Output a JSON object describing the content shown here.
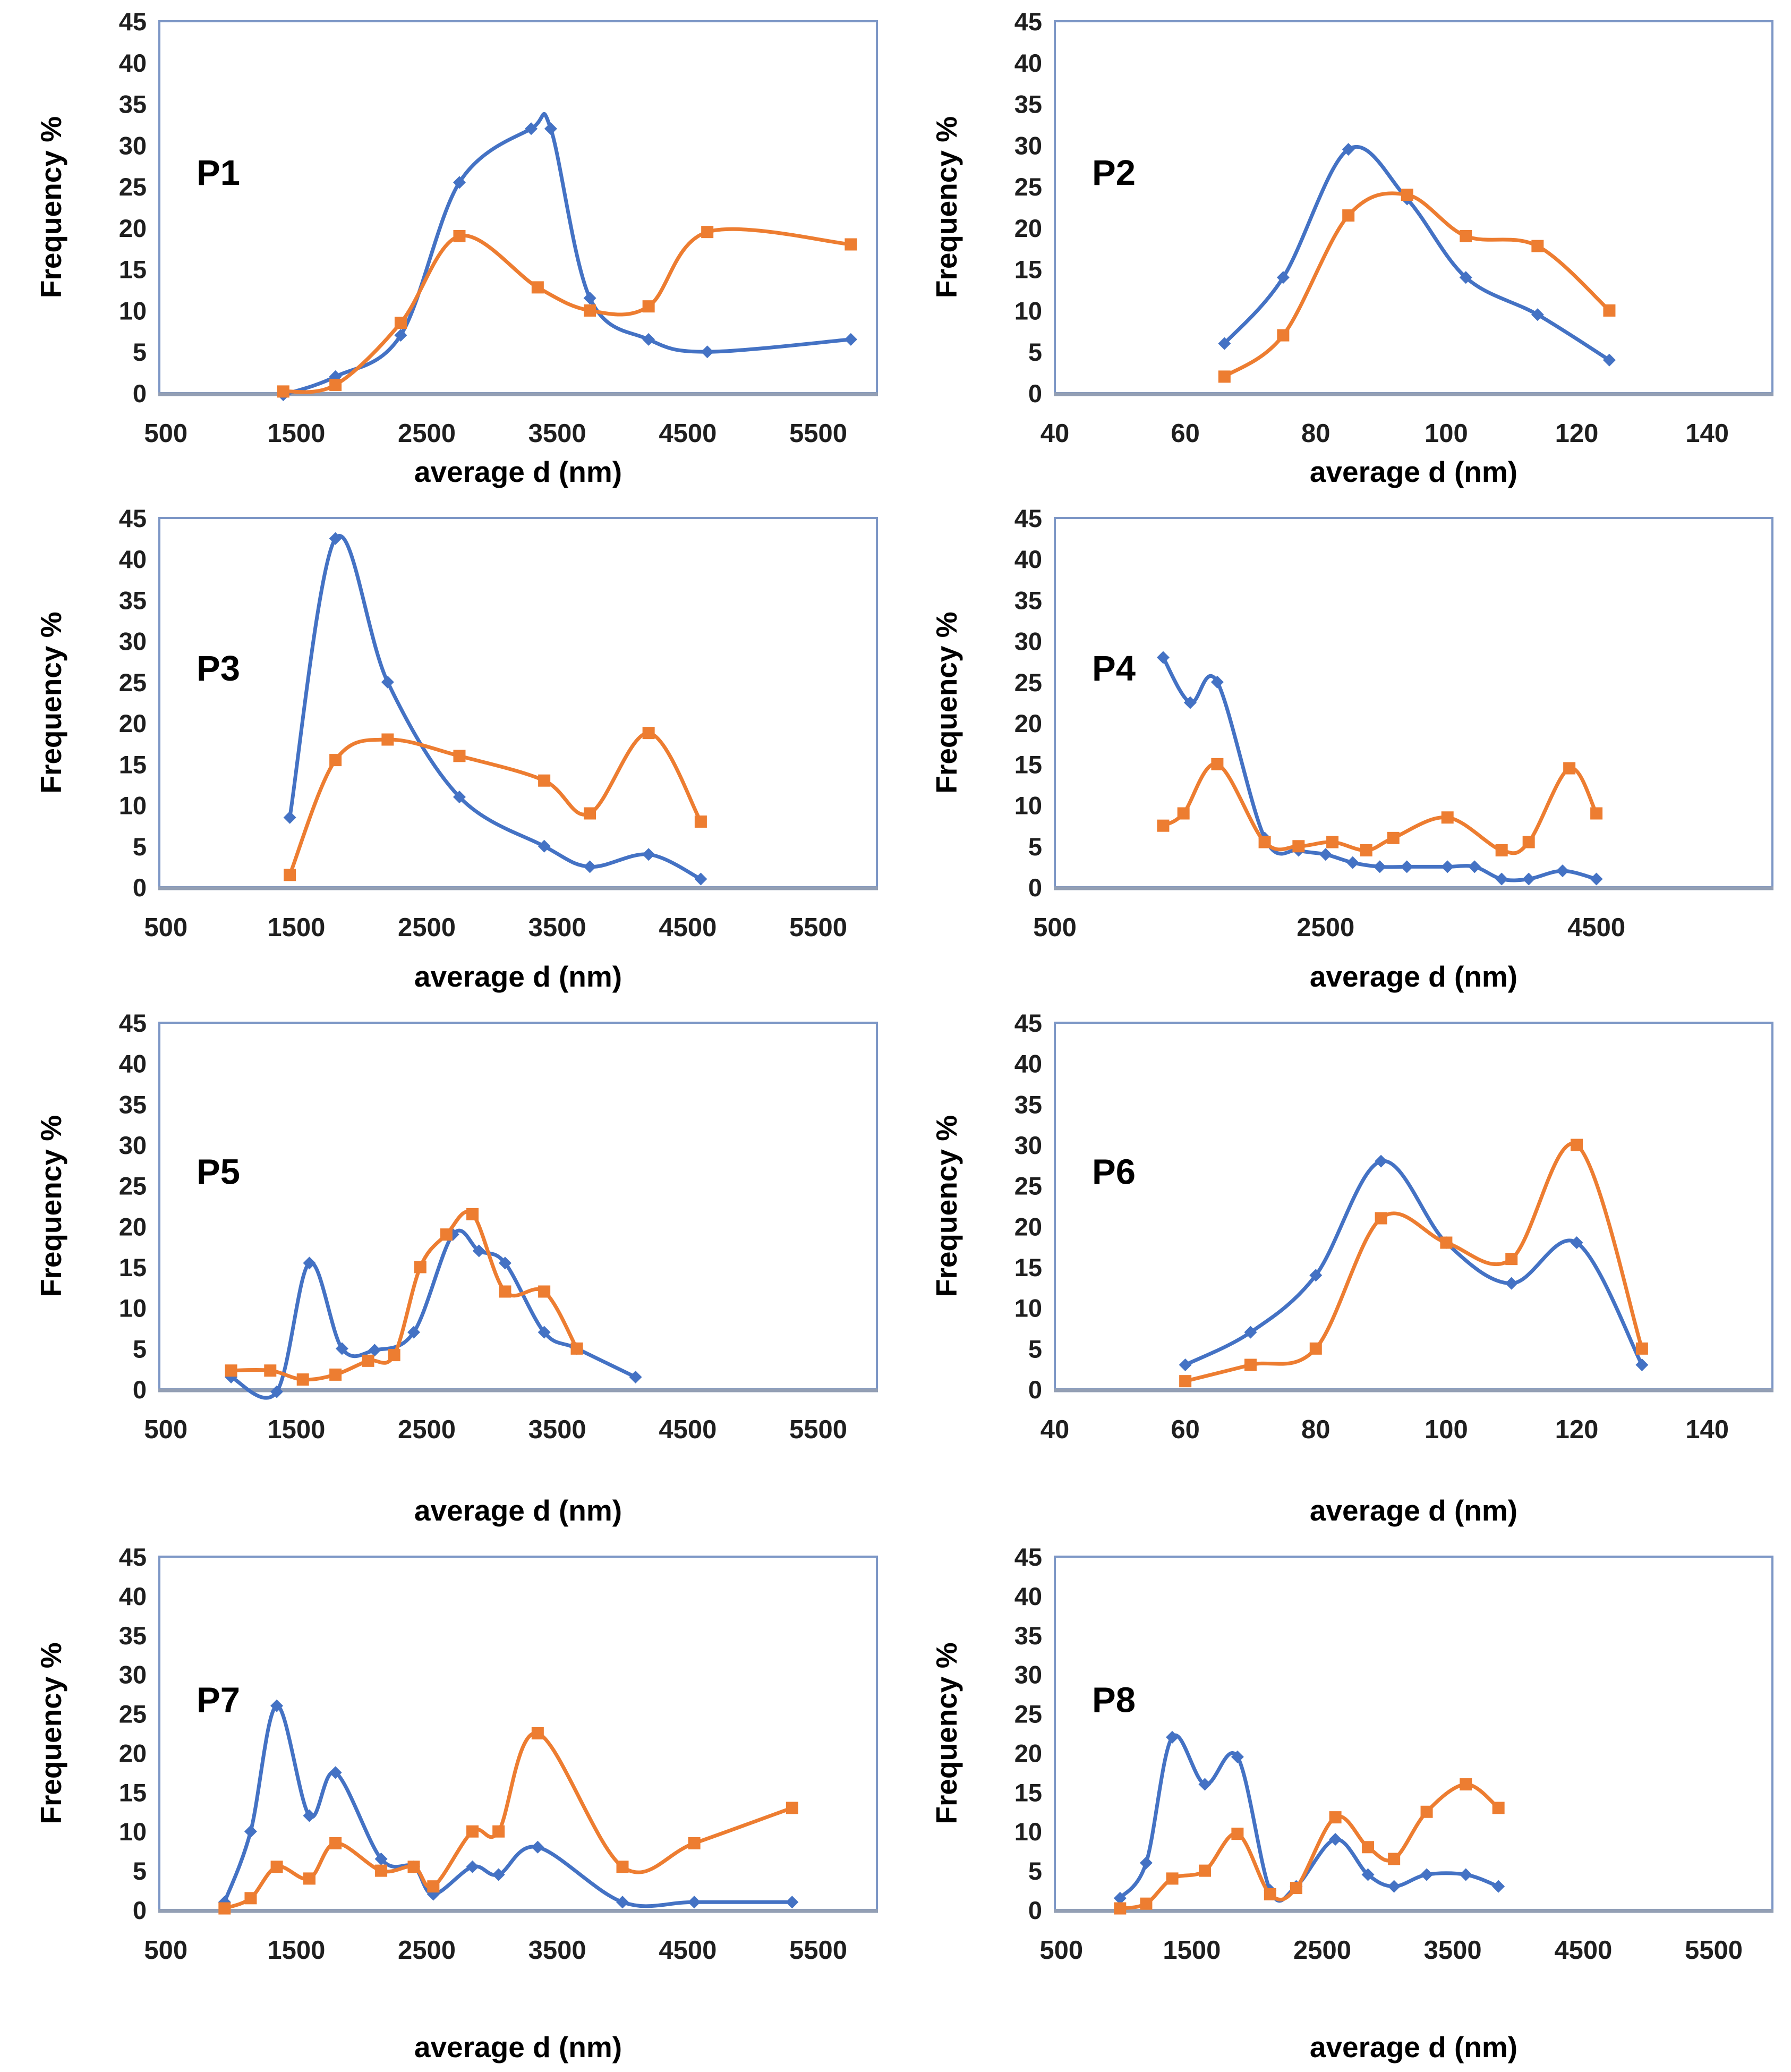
{
  "figure": {
    "description": "Particle size distribution figure: 8 scatter-smooth charts P1 to P8, two series each (blue diamonds, orange squares)",
    "ylabel": "Frequency %",
    "xlabel": "average d (nm)"
  },
  "colors": {
    "series_blue": "#4472C4",
    "series_orange": "#ED7D31",
    "frame": "#7D97C6",
    "baseline": "#939FB4",
    "tick_text": "#1f1f1f",
    "label_text": "#000000",
    "background": "#ffffff"
  },
  "chart_data": [
    {
      "type": "line",
      "title": "P1",
      "xlabel": "average d (nm)",
      "ylabel": "Frequency %",
      "xlim": [
        450,
        5950
      ],
      "ylim": [
        0,
        45
      ],
      "xticks": [
        500,
        1500,
        2500,
        3500,
        4500,
        5500
      ],
      "yticks": [
        0,
        5,
        10,
        15,
        20,
        25,
        30,
        35,
        40,
        45
      ],
      "grid": false,
      "legend": "none",
      "series": [
        {
          "name": "blue-diamond",
          "color": "#4472C4",
          "marker": "diamond",
          "x": [
            1400,
            1800,
            2300,
            2750,
            3300,
            3450,
            3750,
            4200,
            4650,
            5750
          ],
          "y": [
            -0.2,
            2,
            7,
            25.5,
            32,
            32,
            11.5,
            6.5,
            5,
            6.5
          ]
        },
        {
          "name": "orange-square",
          "color": "#ED7D31",
          "marker": "square",
          "x": [
            1400,
            1800,
            2300,
            2750,
            3350,
            3750,
            4200,
            4650,
            5750
          ],
          "y": [
            0.2,
            1,
            8.5,
            19,
            12.8,
            10,
            10.5,
            19.5,
            18
          ]
        }
      ]
    },
    {
      "type": "line",
      "title": "P2",
      "xlabel": "average d (nm)",
      "ylabel": "Frequency %",
      "xlim": [
        40,
        150
      ],
      "ylim": [
        0,
        45
      ],
      "xticks": [
        40,
        60,
        80,
        100,
        120,
        140
      ],
      "yticks": [
        0,
        5,
        10,
        15,
        20,
        25,
        30,
        35,
        40,
        45
      ],
      "grid": false,
      "legend": "none",
      "series": [
        {
          "name": "blue-diamond",
          "color": "#4472C4",
          "marker": "diamond",
          "x": [
            66,
            75,
            85,
            94,
            103,
            114,
            125
          ],
          "y": [
            6,
            14,
            29.5,
            23.5,
            14,
            9.5,
            4
          ]
        },
        {
          "name": "orange-square",
          "color": "#ED7D31",
          "marker": "square",
          "x": [
            66,
            75,
            85,
            94,
            103,
            114,
            125
          ],
          "y": [
            2,
            7,
            21.5,
            24,
            19,
            17.8,
            10
          ]
        }
      ]
    },
    {
      "type": "line",
      "title": "P3",
      "xlabel": "average d (nm)",
      "ylabel": "Frequency %",
      "xlim": [
        450,
        5950
      ],
      "ylim": [
        0,
        45
      ],
      "xticks": [
        500,
        1500,
        2500,
        3500,
        4500,
        5500
      ],
      "yticks": [
        0,
        5,
        10,
        15,
        20,
        25,
        30,
        35,
        40,
        45
      ],
      "grid": false,
      "legend": "none",
      "series": [
        {
          "name": "blue-diamond",
          "color": "#4472C4",
          "marker": "diamond",
          "x": [
            1450,
            1800,
            2200,
            2750,
            3400,
            3750,
            4200,
            4600
          ],
          "y": [
            8.5,
            42.5,
            25,
            11,
            5,
            2.5,
            4,
            1
          ]
        },
        {
          "name": "orange-square",
          "color": "#ED7D31",
          "marker": "square",
          "x": [
            1450,
            1800,
            2200,
            2750,
            3400,
            3750,
            4200,
            4600
          ],
          "y": [
            1.5,
            15.5,
            18,
            16,
            13,
            9,
            18.8,
            8
          ]
        }
      ]
    },
    {
      "type": "line",
      "title": "P4",
      "xlabel": "average d (nm)",
      "ylabel": "Frequency %",
      "xlim": [
        500,
        5800
      ],
      "ylim": [
        0,
        45
      ],
      "xticks": [
        500,
        2500,
        4500
      ],
      "yticks": [
        0,
        5,
        10,
        15,
        20,
        25,
        30,
        35,
        40,
        45
      ],
      "grid": false,
      "legend": "none",
      "series": [
        {
          "name": "blue-diamond",
          "color": "#4472C4",
          "marker": "diamond",
          "x": [
            1300,
            1500,
            1700,
            2050,
            2300,
            2500,
            2700,
            2900,
            3100,
            3400,
            3600,
            3800,
            4000,
            4250,
            4500
          ],
          "y": [
            28,
            22.5,
            25,
            6,
            4.5,
            4,
            3,
            2.5,
            2.5,
            2.5,
            2.5,
            1,
            1,
            2,
            1
          ]
        },
        {
          "name": "orange-square",
          "color": "#ED7D31",
          "marker": "square",
          "x": [
            1300,
            1450,
            1700,
            2050,
            2300,
            2550,
            2800,
            3000,
            3400,
            3800,
            4000,
            4300,
            4500
          ],
          "y": [
            7.5,
            9,
            15,
            5.5,
            5,
            5.5,
            4.5,
            6,
            8.5,
            4.5,
            5.5,
            14.5,
            9
          ]
        }
      ]
    },
    {
      "type": "line",
      "title": "P5",
      "xlabel": "average d (nm)",
      "ylabel": "Frequency %",
      "xlim": [
        450,
        5950
      ],
      "ylim": [
        0,
        45
      ],
      "xticks": [
        500,
        1500,
        2500,
        3500,
        4500,
        5500
      ],
      "yticks": [
        0,
        5,
        10,
        15,
        20,
        25,
        30,
        35,
        40,
        45
      ],
      "grid": false,
      "legend": "none",
      "series": [
        {
          "name": "blue-diamond",
          "color": "#4472C4",
          "marker": "diamond",
          "x": [
            1000,
            1350,
            1600,
            1850,
            2100,
            2400,
            2700,
            2900,
            3100,
            3400,
            3650,
            4100
          ],
          "y": [
            1.5,
            -0.3,
            15.5,
            5,
            4.8,
            7,
            19,
            17,
            15.5,
            7,
            5,
            1.5
          ]
        },
        {
          "name": "orange-square",
          "color": "#ED7D31",
          "marker": "square",
          "x": [
            1000,
            1300,
            1550,
            1800,
            2050,
            2250,
            2450,
            2650,
            2850,
            3100,
            3400,
            3650
          ],
          "y": [
            2.3,
            2.3,
            1.2,
            1.8,
            3.5,
            4.2,
            15,
            19,
            21.5,
            12,
            12,
            5
          ]
        }
      ]
    },
    {
      "type": "line",
      "title": "P6",
      "xlabel": "average d (nm)",
      "ylabel": "Frequency %",
      "xlim": [
        40,
        150
      ],
      "ylim": [
        0,
        45
      ],
      "xticks": [
        40,
        60,
        80,
        100,
        120,
        140
      ],
      "yticks": [
        0,
        5,
        10,
        15,
        20,
        25,
        30,
        35,
        40,
        45
      ],
      "grid": false,
      "legend": "none",
      "series": [
        {
          "name": "blue-diamond",
          "color": "#4472C4",
          "marker": "diamond",
          "x": [
            60,
            70,
            80,
            90,
            100,
            110,
            120,
            130
          ],
          "y": [
            3,
            7,
            14,
            28,
            18,
            13,
            18,
            3
          ]
        },
        {
          "name": "orange-square",
          "color": "#ED7D31",
          "marker": "square",
          "x": [
            60,
            70,
            80,
            90,
            100,
            110,
            120,
            130
          ],
          "y": [
            1,
            3,
            5,
            21,
            18,
            16,
            30,
            5
          ]
        }
      ]
    },
    {
      "type": "line",
      "title": "P7",
      "xlabel": "average d (nm)",
      "ylabel": "Frequency %",
      "xlim": [
        450,
        5950
      ],
      "ylim": [
        0,
        45
      ],
      "xticks": [
        500,
        1500,
        2500,
        3500,
        4500,
        5500
      ],
      "yticks": [
        0,
        5,
        10,
        15,
        20,
        25,
        30,
        35,
        40,
        45
      ],
      "grid": false,
      "legend": "none",
      "series": [
        {
          "name": "blue-diamond",
          "color": "#4472C4",
          "marker": "diamond",
          "x": [
            950,
            1150,
            1350,
            1600,
            1800,
            2150,
            2400,
            2550,
            2850,
            3050,
            3350,
            4000,
            4550,
            5300
          ],
          "y": [
            1,
            10,
            26,
            12,
            17.5,
            6.5,
            5.5,
            2,
            5.5,
            4.5,
            8,
            1,
            1,
            1
          ]
        },
        {
          "name": "orange-square",
          "color": "#ED7D31",
          "marker": "square",
          "x": [
            950,
            1150,
            1350,
            1600,
            1800,
            2150,
            2400,
            2550,
            2850,
            3050,
            3350,
            4000,
            4550,
            5300
          ],
          "y": [
            0.2,
            1.5,
            5.5,
            4,
            8.5,
            5,
            5.5,
            3,
            10,
            10,
            22.5,
            5.5,
            8.5,
            13
          ]
        }
      ]
    },
    {
      "type": "line",
      "title": "P8",
      "xlabel": "average d (nm)",
      "ylabel": "Frequency %",
      "xlim": [
        450,
        5950
      ],
      "ylim": [
        0,
        45
      ],
      "xticks": [
        500,
        1500,
        2500,
        3500,
        4500,
        5500
      ],
      "yticks": [
        0,
        5,
        10,
        15,
        20,
        25,
        30,
        35,
        40,
        45
      ],
      "grid": false,
      "legend": "none",
      "series": [
        {
          "name": "blue-diamond",
          "color": "#4472C4",
          "marker": "diamond",
          "x": [
            950,
            1150,
            1350,
            1600,
            1850,
            2100,
            2300,
            2600,
            2850,
            3050,
            3300,
            3600,
            3850
          ],
          "y": [
            1.5,
            6,
            22,
            16,
            19.5,
            2.5,
            3,
            9,
            4.5,
            3,
            4.5,
            4.5,
            3
          ]
        },
        {
          "name": "orange-square",
          "color": "#ED7D31",
          "marker": "square",
          "x": [
            950,
            1150,
            1350,
            1600,
            1850,
            2100,
            2300,
            2600,
            2850,
            3050,
            3300,
            3600,
            3850
          ],
          "y": [
            0.2,
            0.8,
            4,
            5,
            9.7,
            2,
            2.8,
            11.8,
            8,
            6.5,
            12.5,
            16,
            13
          ]
        }
      ]
    }
  ]
}
